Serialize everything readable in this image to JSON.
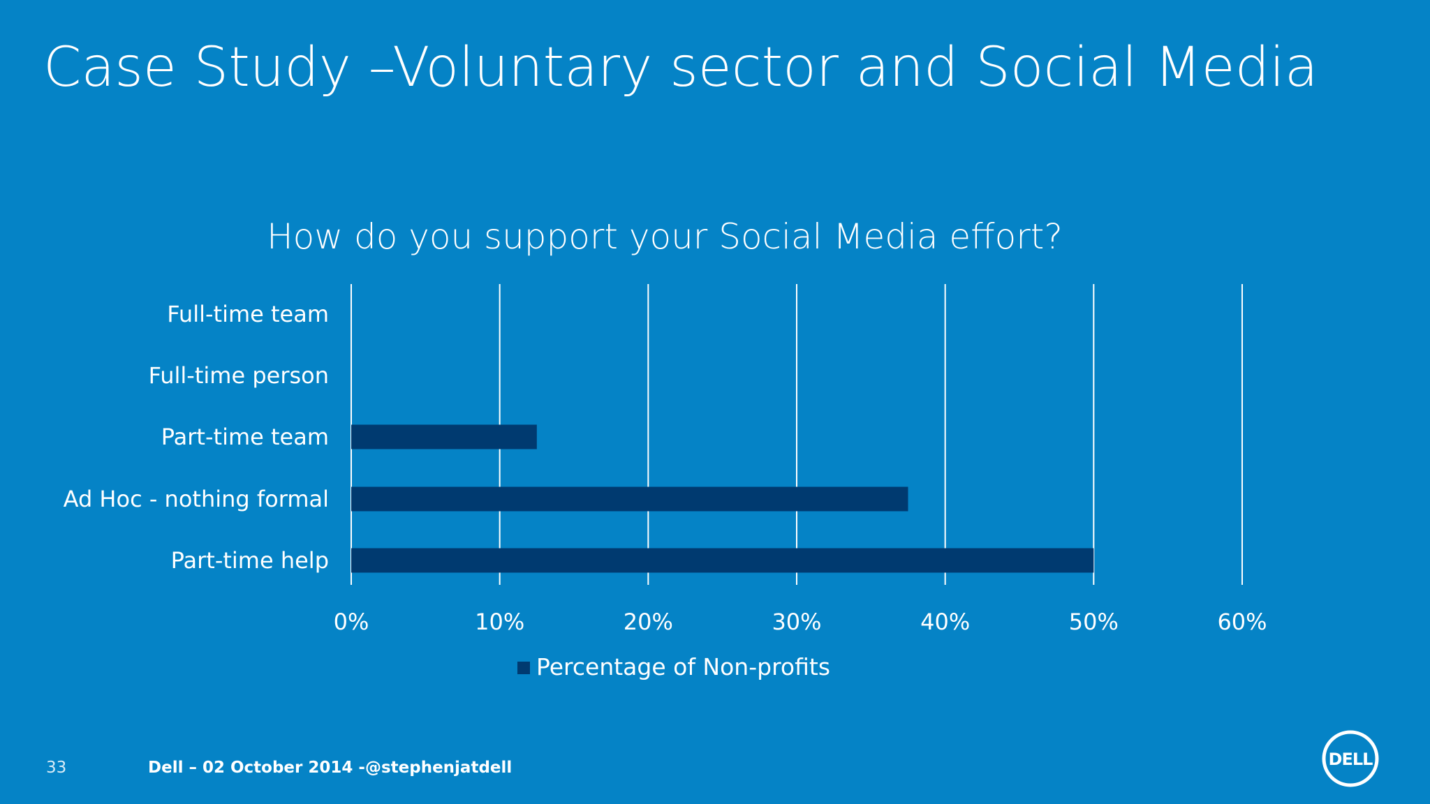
{
  "slide": {
    "title": "Case Study –Voluntary sector and Social Media",
    "page_number": "33",
    "footer": "Dell – 02 October 2014 -@stephenjatdell",
    "logo_text": "DELL"
  },
  "colors": {
    "background": "#0583C6",
    "bar": "#003A70",
    "text": "#ffffff"
  },
  "chart_data": {
    "type": "bar",
    "orientation": "horizontal",
    "title": "How do you support your Social Media effort?",
    "categories": [
      "Full-time team",
      "Full-time person",
      "Part-time team",
      "Ad Hoc - nothing formal",
      "Part-time help"
    ],
    "series": [
      {
        "name": "Percentage of Non-profits",
        "values": [
          0,
          0,
          12.5,
          37.5,
          50
        ]
      }
    ],
    "xlim": [
      0,
      60
    ],
    "xticks": [
      0,
      10,
      20,
      30,
      40,
      50,
      60
    ],
    "tick_labels": [
      "0%",
      "10%",
      "20%",
      "30%",
      "40%",
      "50%",
      "60%"
    ],
    "grid": true,
    "legend": "bottom"
  }
}
